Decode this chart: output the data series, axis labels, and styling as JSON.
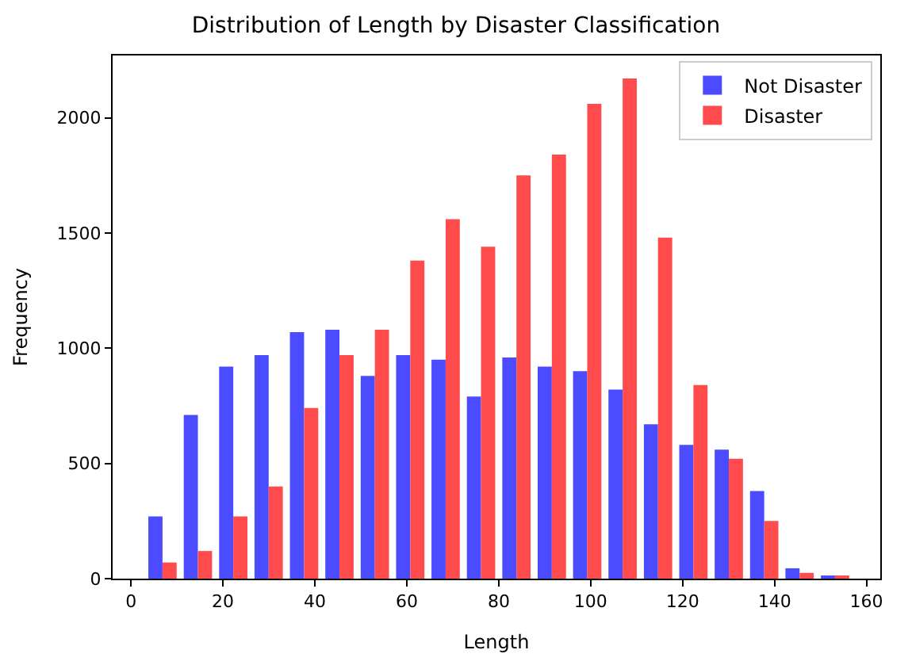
{
  "chart_data": {
    "type": "histogram",
    "title": "Distribution of Length by Disaster Classification",
    "xlabel": "Length",
    "ylabel": "Frequency",
    "bins": [
      3,
      10.7,
      18.4,
      26.1,
      33.8,
      41.5,
      49.2,
      56.9,
      64.6,
      72.3,
      80,
      87.7,
      95.4,
      103.1,
      110.8,
      118.5,
      126.2,
      133.9,
      141.6,
      149.3,
      157
    ],
    "series": [
      {
        "name": "Not Disaster",
        "color": "#4b4bff",
        "values": [
          270,
          710,
          920,
          970,
          1070,
          1080,
          880,
          970,
          950,
          790,
          960,
          920,
          900,
          820,
          670,
          580,
          560,
          380,
          45,
          11
        ]
      },
      {
        "name": "Disaster",
        "color": "#ff4b4b",
        "values": [
          70,
          120,
          270,
          400,
          740,
          970,
          1080,
          1380,
          1560,
          1440,
          1750,
          1840,
          2060,
          2170,
          1480,
          840,
          520,
          250,
          25,
          11
        ]
      }
    ],
    "xlim": [
      -4,
      163
    ],
    "xticks": [
      0,
      20,
      40,
      60,
      80,
      100,
      120,
      140,
      160
    ],
    "ylim": [
      0,
      2270
    ],
    "yticks": [
      0,
      500,
      1000,
      1500,
      2000
    ],
    "legend": "top right"
  }
}
